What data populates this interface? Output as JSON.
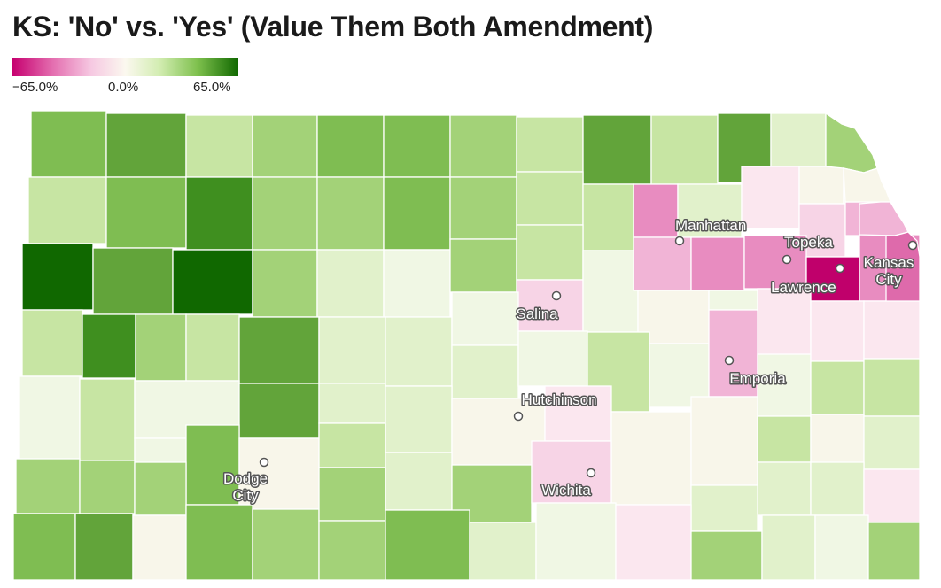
{
  "title": "KS: 'No' vs. 'Yes' (Value Them Both Amendment)",
  "legend": {
    "ticks": [
      "−65.0%",
      "0.0%",
      "65.0%"
    ],
    "min": -65.0,
    "max": 65.0,
    "color_no": "#c6006f",
    "color_mid": "#fbf8ef",
    "color_yes": "#106800"
  },
  "cities": [
    {
      "name": "Manhattan",
      "lines": [
        "Manhattan"
      ]
    },
    {
      "name": "Topeka",
      "lines": [
        "Topeka"
      ]
    },
    {
      "name": "Lawrence",
      "lines": [
        "Lawrence"
      ]
    },
    {
      "name": "Kansas City",
      "lines": [
        "Kansas",
        "City"
      ]
    },
    {
      "name": "Salina",
      "lines": [
        "Salina"
      ]
    },
    {
      "name": "Emporia",
      "lines": [
        "Emporia"
      ]
    },
    {
      "name": "Hutchinson",
      "lines": [
        "Hutchinson"
      ]
    },
    {
      "name": "Wichita",
      "lines": [
        "Wichita"
      ]
    },
    {
      "name": "Dodge City",
      "lines": [
        "Dodge",
        "City"
      ]
    }
  ],
  "colors": {
    "g1": "#106800",
    "g2": "#3f8f1f",
    "g3": "#62a43a",
    "g4": "#7fbd52",
    "g5": "#a3d278",
    "g6": "#c7e5a3",
    "g7": "#e1f1cb",
    "g8": "#f0f7e4",
    "n": "#f8f6ea",
    "p8": "#fbe7ef",
    "p7": "#f7d4e6",
    "p6": "#f1b4d6",
    "p5": "#e88cc0",
    "p4": "#de6aab",
    "p1": "#c0006b"
  }
}
